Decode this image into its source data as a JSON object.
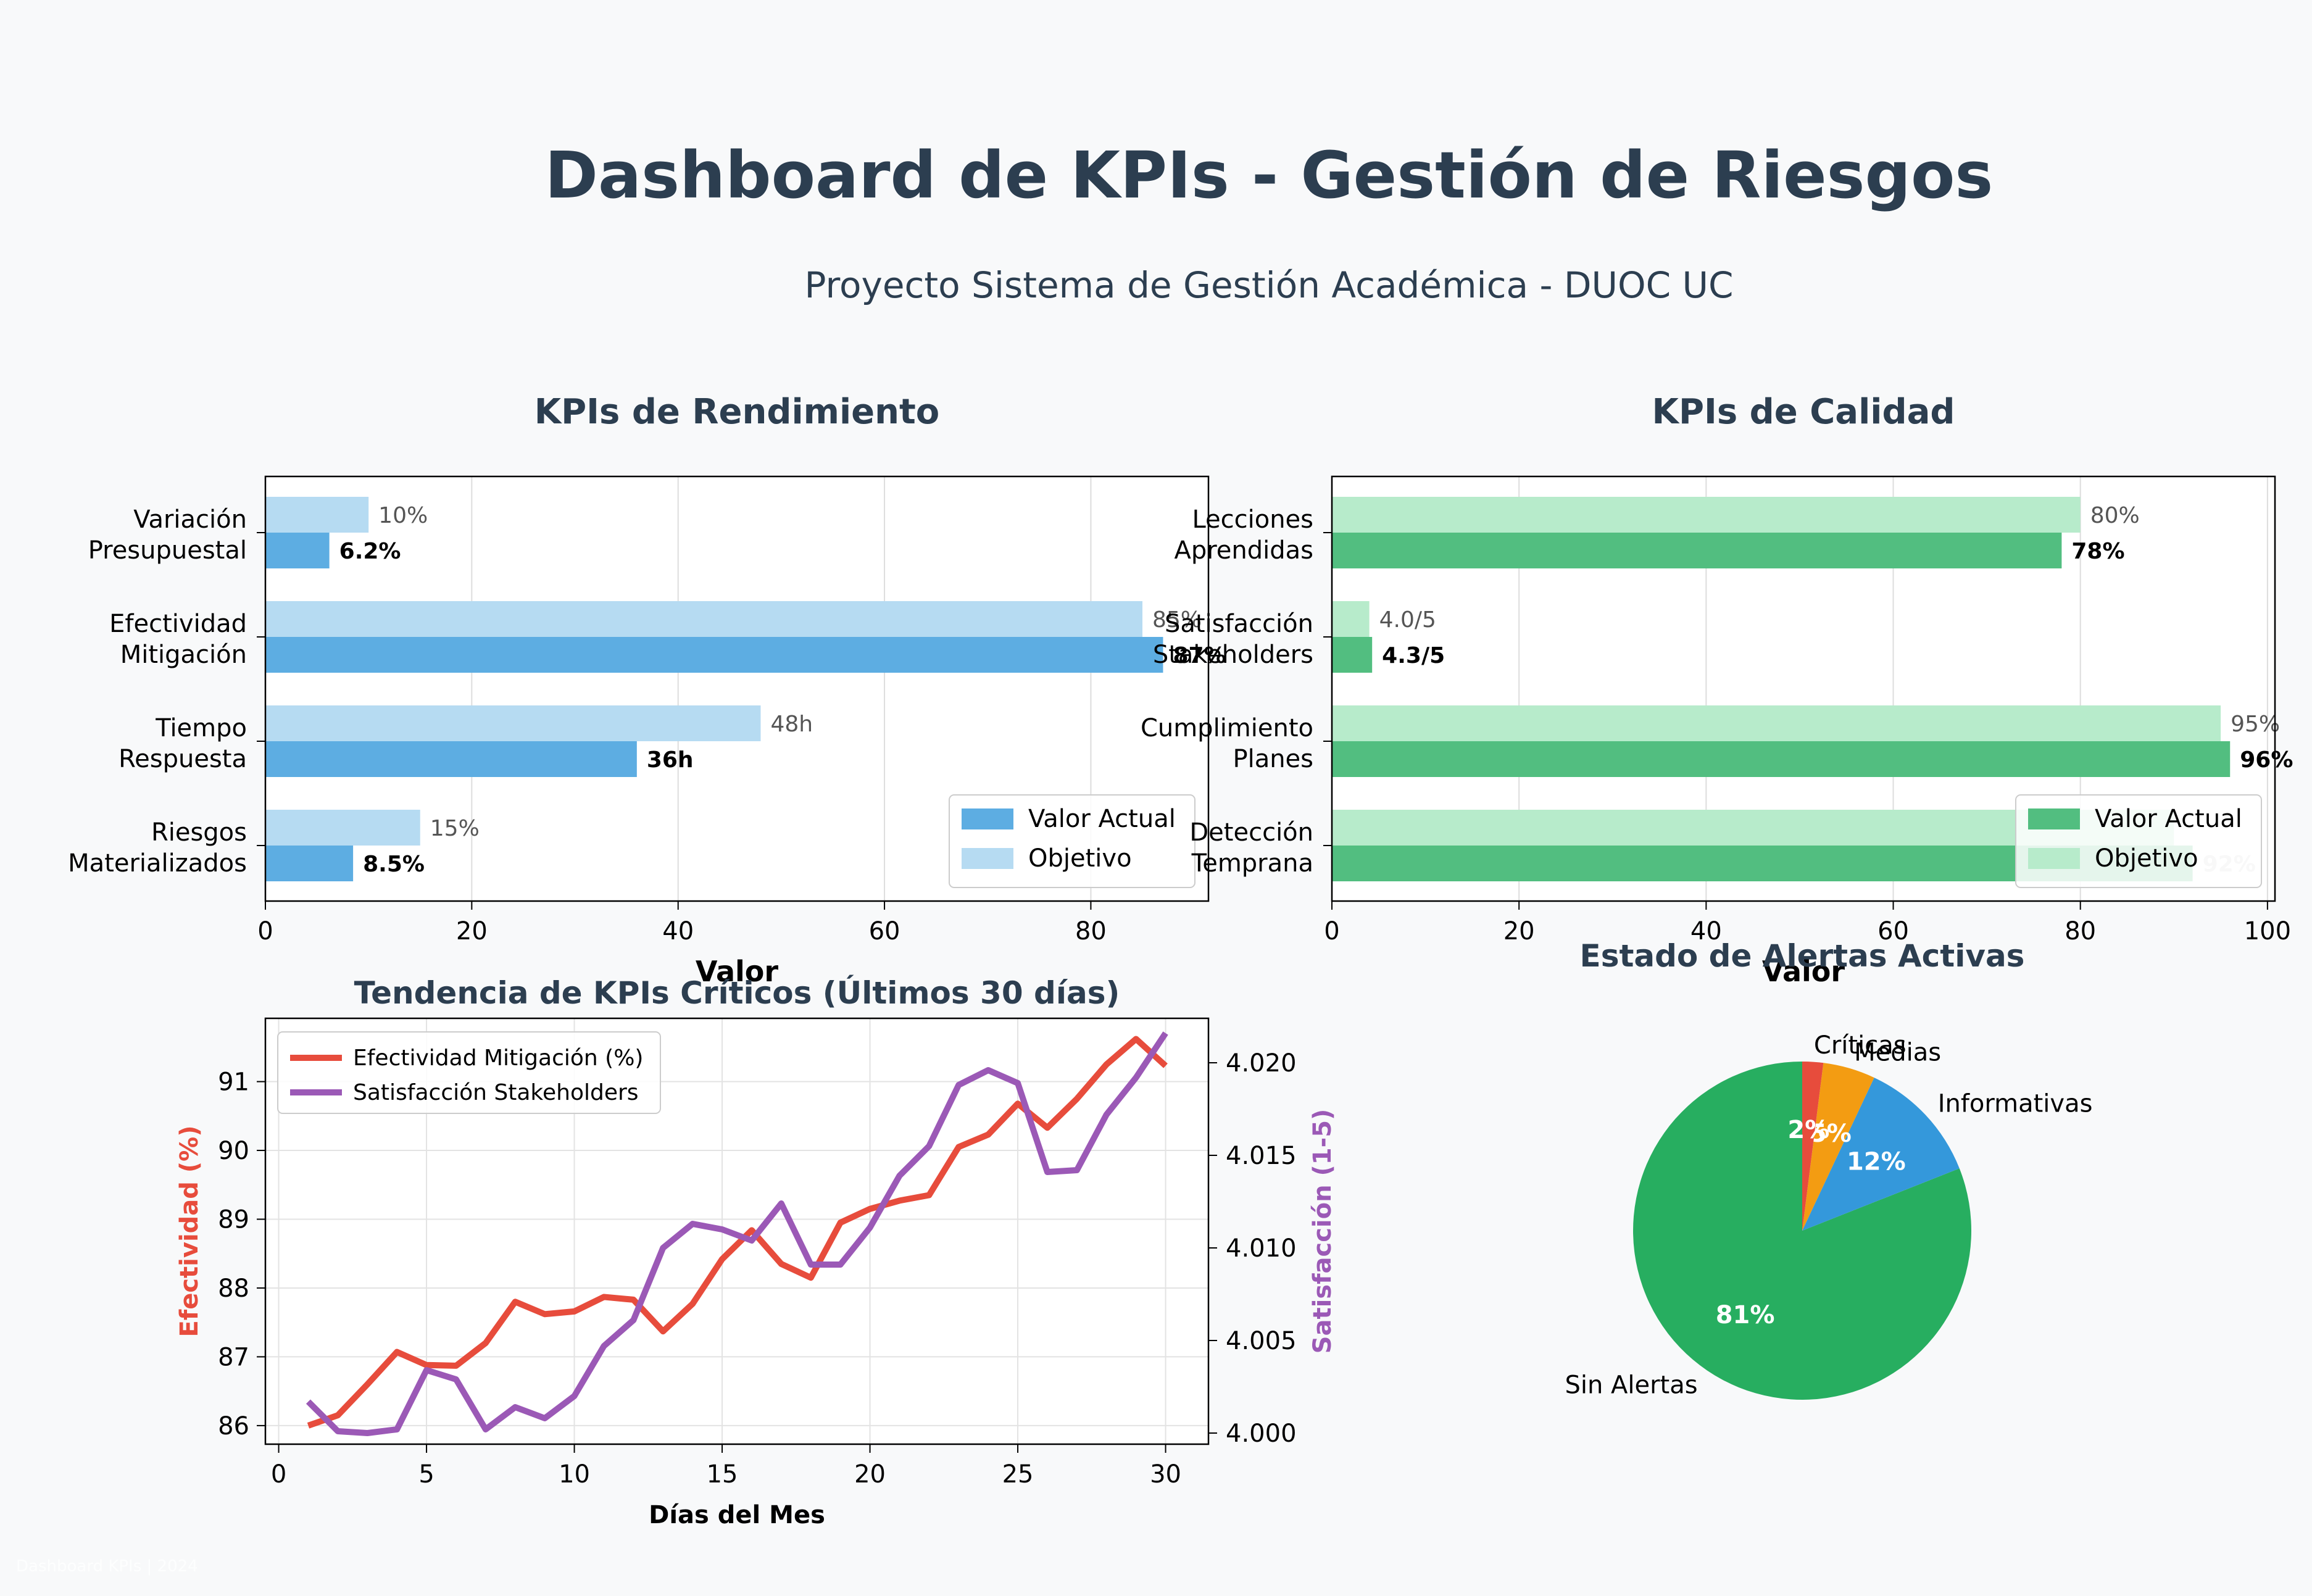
{
  "dashboard": {
    "title": "Dashboard de KPIs - Gestión de Riesgos",
    "subtitle": "Proyecto Sistema de Gestión Académica - DUOC UC",
    "footer": "Dashboard KPIs | 2024"
  },
  "colors": {
    "background": "#f8f9fa",
    "title": "#2c3e50",
    "perf_actual": "#5dade2",
    "perf_target": "#b6dbf2",
    "qual_actual": "#52be80",
    "qual_target": "#b7ebcb",
    "line_effectiveness": "#e74c3c",
    "line_satisfaction": "#9b59b6",
    "pie_sin_alertas": "#27ae60",
    "pie_informativas": "#3498db",
    "pie_medias": "#f39c12",
    "pie_criticas": "#e74c3c"
  },
  "chart_data": [
    {
      "type": "bar",
      "orientation": "horizontal",
      "title": "KPIs de Rendimiento",
      "xlabel": "Valor",
      "ylabel": "",
      "xlim": [
        0,
        91.4
      ],
      "xticks": [
        "0",
        "20",
        "40",
        "60",
        "80"
      ],
      "grid": true,
      "legend_position": "lower-right",
      "categories": [
        [
          "Variación",
          "Presupuestal"
        ],
        [
          "Efectividad",
          "Mitigación"
        ],
        [
          "Tiempo",
          "Respuesta"
        ],
        [
          "Riesgos",
          "Materializados"
        ]
      ],
      "series": [
        {
          "name": "Valor Actual",
          "values": [
            6.2,
            87,
            36,
            8.5
          ],
          "labels": [
            "6.2%",
            "87%",
            "36h",
            "8.5%"
          ]
        },
        {
          "name": "Objetivo",
          "values": [
            10,
            85,
            48,
            15
          ],
          "labels": [
            "10%",
            "85%",
            "48h",
            "15%"
          ]
        }
      ]
    },
    {
      "type": "bar",
      "orientation": "horizontal",
      "title": "KPIs de Calidad",
      "xlabel": "Valor",
      "ylabel": "",
      "xlim": [
        0,
        100.8
      ],
      "xticks": [
        "0",
        "20",
        "40",
        "60",
        "80",
        "100"
      ],
      "grid": true,
      "legend_position": "lower-right",
      "categories": [
        [
          "Lecciones",
          "Aprendidas"
        ],
        [
          "Satisfacción",
          "Stakeholders"
        ],
        [
          "Cumplimiento",
          "Planes"
        ],
        [
          "Detección",
          "Temprana"
        ]
      ],
      "series": [
        {
          "name": "Valor Actual",
          "values": [
            78,
            4.3,
            96,
            92
          ],
          "labels": [
            "78%",
            "4.3/5",
            "96%",
            "92%"
          ]
        },
        {
          "name": "Objetivo",
          "values": [
            80,
            4.0,
            95,
            90
          ],
          "labels": [
            "80%",
            "4.0/5",
            "95%",
            ""
          ]
        }
      ]
    },
    {
      "type": "line",
      "title": "Tendencia de KPIs Críticos (Últimos 30 días)",
      "xlabel": "Días del Mes",
      "ylabel": "Efectividad (%)",
      "y2label": "Satisfacción (1-5)",
      "xlim": [
        -0.45,
        31.45
      ],
      "ylim": [
        85.73,
        91.92
      ],
      "y2lim": [
        3.9994,
        4.0224
      ],
      "xticks": [
        0,
        5,
        10,
        15,
        20,
        25,
        30
      ],
      "yticks": [
        86,
        87,
        88,
        89,
        90,
        91
      ],
      "y2ticks": [
        "4.000",
        "4.005",
        "4.010",
        "4.015",
        "4.020"
      ],
      "y2tickvalues": [
        4.0,
        4.005,
        4.01,
        4.015,
        4.02
      ],
      "grid": true,
      "legend_position": "top-left",
      "x": [
        1,
        2,
        3,
        4,
        5,
        6,
        7,
        8,
        9,
        10,
        11,
        12,
        13,
        14,
        15,
        16,
        17,
        18,
        19,
        20,
        21,
        22,
        23,
        24,
        25,
        26,
        27,
        28,
        29,
        30
      ],
      "series": [
        {
          "name": "Efectividad Mitigación (%)",
          "axis": "left",
          "values": [
            86.0,
            86.15,
            86.6,
            87.07,
            86.88,
            86.87,
            87.2,
            87.8,
            87.62,
            87.66,
            87.87,
            87.83,
            87.37,
            87.77,
            88.42,
            88.84,
            88.35,
            88.15,
            88.95,
            89.15,
            89.27,
            89.35,
            90.05,
            90.23,
            90.68,
            90.33,
            90.75,
            91.25,
            91.62,
            91.23
          ]
        },
        {
          "name": "Satisfacción Stakeholders",
          "axis": "right",
          "values": [
            4.0017,
            4.0001,
            4.0,
            4.0002,
            4.0034,
            4.0029,
            4.0002,
            4.0014,
            4.0008,
            4.002,
            4.0047,
            4.0061,
            4.01,
            4.0113,
            4.011,
            4.0104,
            4.0124,
            4.0091,
            4.0091,
            4.0111,
            4.0139,
            4.0155,
            4.0188,
            4.0196,
            4.0189,
            4.0141,
            4.0142,
            4.0172,
            4.0192,
            4.0216
          ]
        }
      ]
    },
    {
      "type": "pie",
      "title": "Estado de Alertas Activas",
      "categories": [
        "Sin Alertas",
        "Informativas",
        "Medias",
        "Críticas"
      ],
      "values": [
        81,
        12,
        5,
        2
      ],
      "labels": [
        "81%",
        "12%",
        "5%",
        "2%"
      ]
    }
  ]
}
